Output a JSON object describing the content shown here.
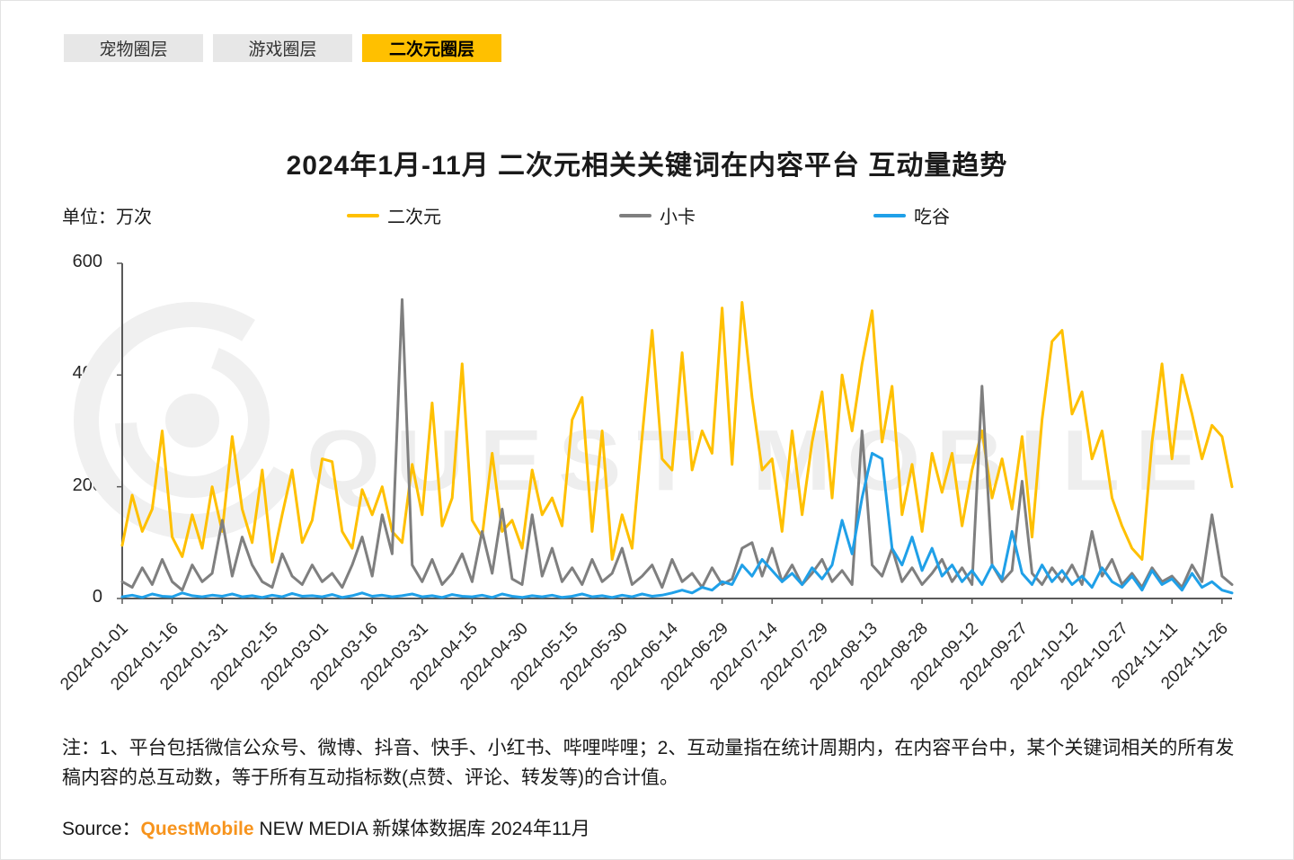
{
  "tabs": [
    {
      "label": "宠物圈层",
      "active": false
    },
    {
      "label": "游戏圈层",
      "active": false
    },
    {
      "label": "二次元圈层",
      "active": true
    }
  ],
  "title": "2024年1月-11月 二次元相关关键词在内容平台 互动量趋势",
  "unit_label": "单位：万次",
  "watermark": {
    "text": "QUEST MOBILE"
  },
  "note": "注：1、平台包括微信公众号、微博、抖音、快手、小红书、哔哩哔哩；2、互动量指在统计周期内，在内容平台中，某个关键词相关的所有发稿内容的总互动数，等于所有互动指标数(点赞、评论、转发等)的合计值。",
  "source": {
    "prefix": "Source：",
    "brand": "QuestMobile",
    "suffix": " NEW MEDIA 新媒体数据库 2024年11月",
    "brand_color": "#F7941D"
  },
  "chart_data": {
    "type": "line",
    "title": "2024年1月-11月 二次元相关关键词在内容平台 互动量趋势",
    "ylabel": "单位：万次",
    "ylim": [
      0,
      600
    ],
    "y_ticks": [
      0,
      200,
      400,
      600
    ],
    "grid": false,
    "legend_position": "top",
    "x_tick_labels": [
      "2024-01-01",
      "2024-01-16",
      "2024-01-31",
      "2024-02-15",
      "2024-03-01",
      "2024-03-16",
      "2024-03-31",
      "2024-04-15",
      "2024-04-30",
      "2024-05-15",
      "2024-05-30",
      "2024-06-14",
      "2024-06-29",
      "2024-07-14",
      "2024-07-29",
      "2024-08-13",
      "2024-08-28",
      "2024-09-12",
      "2024-09-27",
      "2024-10-12",
      "2024-10-27",
      "2024-11-11",
      "2024-11-26"
    ],
    "sample_interval_days": 3,
    "samples_per_tick": 5,
    "series": [
      {
        "name": "二次元",
        "color": "#FFC000",
        "values": [
          95,
          185,
          120,
          160,
          300,
          110,
          75,
          150,
          90,
          200,
          120,
          290,
          160,
          100,
          230,
          65,
          150,
          230,
          100,
          140,
          250,
          245,
          120,
          90,
          195,
          150,
          200,
          120,
          100,
          240,
          150,
          350,
          130,
          180,
          420,
          140,
          110,
          260,
          120,
          140,
          90,
          230,
          150,
          180,
          130,
          320,
          360,
          120,
          300,
          70,
          150,
          90,
          290,
          480,
          250,
          230,
          440,
          230,
          300,
          260,
          520,
          240,
          530,
          360,
          230,
          250,
          120,
          300,
          150,
          280,
          370,
          180,
          400,
          300,
          420,
          515,
          280,
          380,
          150,
          240,
          120,
          260,
          190,
          260,
          130,
          230,
          300,
          180,
          250,
          160,
          290,
          110,
          320,
          460,
          480,
          330,
          370,
          250,
          300,
          180,
          130,
          90,
          70,
          280,
          420,
          250,
          400,
          330,
          250,
          310,
          290,
          200
        ]
      },
      {
        "name": "小卡",
        "color": "#7F7F7F",
        "values": [
          30,
          20,
          55,
          25,
          70,
          30,
          15,
          60,
          30,
          45,
          140,
          40,
          110,
          60,
          30,
          20,
          80,
          40,
          25,
          60,
          30,
          45,
          20,
          60,
          110,
          40,
          150,
          80,
          535,
          60,
          30,
          70,
          25,
          45,
          80,
          30,
          120,
          45,
          160,
          35,
          25,
          150,
          40,
          90,
          30,
          55,
          25,
          70,
          30,
          45,
          90,
          25,
          40,
          60,
          20,
          70,
          30,
          45,
          20,
          55,
          25,
          35,
          90,
          100,
          40,
          90,
          30,
          60,
          25,
          45,
          70,
          30,
          50,
          25,
          300,
          60,
          40,
          90,
          30,
          55,
          25,
          45,
          70,
          30,
          55,
          25,
          380,
          60,
          30,
          50,
          210,
          45,
          25,
          55,
          30,
          60,
          25,
          120,
          40,
          70,
          25,
          45,
          20,
          55,
          30,
          40,
          20,
          60,
          30,
          150,
          40,
          25
        ]
      },
      {
        "name": "吃谷",
        "color": "#1FA0E8",
        "values": [
          3,
          6,
          2,
          8,
          4,
          3,
          10,
          5,
          3,
          6,
          4,
          8,
          3,
          5,
          2,
          6,
          3,
          9,
          4,
          5,
          3,
          7,
          2,
          5,
          10,
          4,
          6,
          3,
          5,
          8,
          3,
          5,
          2,
          7,
          4,
          3,
          6,
          2,
          8,
          4,
          2,
          5,
          3,
          6,
          2,
          4,
          8,
          3,
          5,
          2,
          6,
          3,
          8,
          4,
          6,
          10,
          15,
          10,
          20,
          15,
          30,
          25,
          60,
          40,
          70,
          50,
          30,
          45,
          25,
          55,
          35,
          60,
          140,
          80,
          180,
          260,
          250,
          90,
          60,
          110,
          50,
          90,
          40,
          60,
          30,
          50,
          25,
          60,
          35,
          120,
          45,
          25,
          60,
          30,
          50,
          25,
          40,
          20,
          55,
          30,
          20,
          40,
          15,
          50,
          25,
          35,
          15,
          45,
          20,
          30,
          15,
          10
        ]
      }
    ]
  }
}
